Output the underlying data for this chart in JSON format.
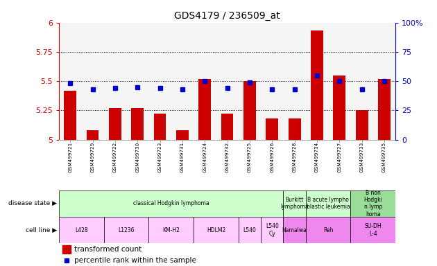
{
  "title": "GDS4179 / 236509_at",
  "samples": [
    "GSM499721",
    "GSM499729",
    "GSM499722",
    "GSM499730",
    "GSM499723",
    "GSM499731",
    "GSM499724",
    "GSM499732",
    "GSM499725",
    "GSM499726",
    "GSM499728",
    "GSM499734",
    "GSM499727",
    "GSM499733",
    "GSM499735"
  ],
  "transformed_count": [
    5.42,
    5.08,
    5.27,
    5.27,
    5.22,
    5.08,
    5.52,
    5.22,
    5.5,
    5.18,
    5.18,
    5.93,
    5.55,
    5.25,
    5.52
  ],
  "percentile_rank": [
    48,
    43,
    44,
    45,
    44,
    43,
    50,
    44,
    49,
    43,
    43,
    55,
    50,
    43,
    50
  ],
  "ylim": [
    5.0,
    6.0
  ],
  "yticks": [
    5.0,
    5.25,
    5.5,
    5.75,
    6.0
  ],
  "right_yticks": [
    0,
    25,
    50,
    75,
    100
  ],
  "bar_color": "#cc0000",
  "dot_color": "#0000cc",
  "ds_groups": [
    {
      "label": "classical Hodgkin lymphoma",
      "start": 0,
      "end": 10,
      "color": "#ccffcc"
    },
    {
      "label": "Burkitt\nlymphoma",
      "start": 10,
      "end": 11,
      "color": "#ccffcc"
    },
    {
      "label": "B acute lympho\nblastic leukemia",
      "start": 11,
      "end": 13,
      "color": "#ccffcc"
    },
    {
      "label": "B non\nHodgki\nn lymp\nhoma",
      "start": 13,
      "end": 15,
      "color": "#99dd99"
    }
  ],
  "cl_groups": [
    {
      "label": "L428",
      "start": 0,
      "end": 2,
      "color": "#ffccff"
    },
    {
      "label": "L1236",
      "start": 2,
      "end": 4,
      "color": "#ffccff"
    },
    {
      "label": "KM-H2",
      "start": 4,
      "end": 6,
      "color": "#ffccff"
    },
    {
      "label": "HDLM2",
      "start": 6,
      "end": 8,
      "color": "#ffccff"
    },
    {
      "label": "L540",
      "start": 8,
      "end": 9,
      "color": "#ffccff"
    },
    {
      "label": "L540\nCy",
      "start": 9,
      "end": 10,
      "color": "#ffccff"
    },
    {
      "label": "Namalwa",
      "start": 10,
      "end": 11,
      "color": "#ee88ee"
    },
    {
      "label": "Reh",
      "start": 11,
      "end": 13,
      "color": "#ee88ee"
    },
    {
      "label": "SU-DH\nL-4",
      "start": 13,
      "end": 15,
      "color": "#ee88ee"
    }
  ],
  "left_axis_color": "#cc0000",
  "right_axis_color": "#0000cc",
  "chart_bg": "#f5f5f5",
  "tick_bg": "#cccccc"
}
